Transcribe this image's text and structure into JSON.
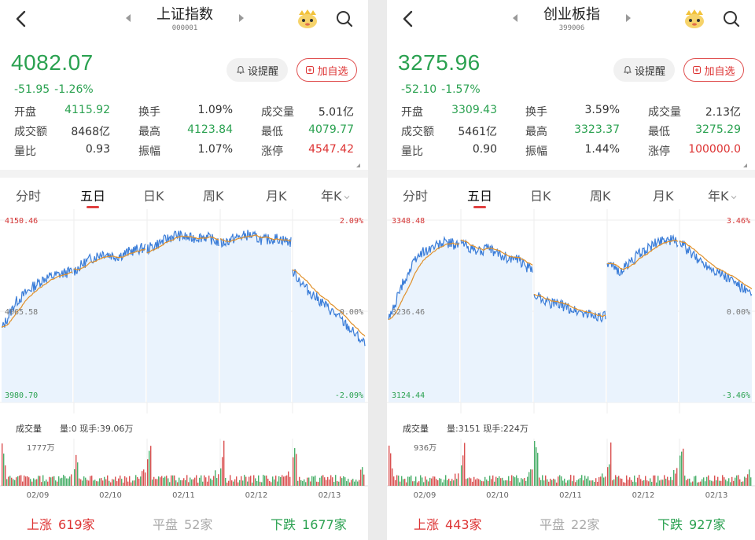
{
  "panels": [
    {
      "title": "上证指数",
      "code": "000001",
      "price": "4082.07",
      "change_abs": "-51.95",
      "change_pct": "-1.26%",
      "alert_label": "设提醒",
      "fav_label": "加自选",
      "stats": [
        [
          {
            "label": "开盘",
            "value": "4115.92",
            "color": "green"
          },
          {
            "label": "换手",
            "value": "1.09%",
            "color": "dark"
          },
          {
            "label": "成交量",
            "value": "5.01亿",
            "color": "dark"
          }
        ],
        [
          {
            "label": "成交额",
            "value": "8468亿",
            "color": "dark"
          },
          {
            "label": "最高",
            "value": "4123.84",
            "color": "green"
          },
          {
            "label": "最低",
            "value": "4079.77",
            "color": "green"
          }
        ],
        [
          {
            "label": "量比",
            "value": "0.93",
            "color": "dark"
          },
          {
            "label": "振幅",
            "value": "1.07%",
            "color": "dark"
          },
          {
            "label": "涨停",
            "value": "4547.42",
            "color": "red"
          }
        ]
      ],
      "tabs": [
        "分时",
        "五日",
        "日K",
        "周K",
        "月K",
        "年K"
      ],
      "active_tab": 1,
      "chart": {
        "y_top": "4150.46",
        "y_mid": "4065.58",
        "y_bot": "3980.70",
        "pct_top": "2.09%",
        "pct_mid": "0.00%",
        "pct_bot": "-2.09%",
        "dates": [
          "02/09",
          "02/10",
          "02/11",
          "02/12",
          "02/13"
        ]
      },
      "volume": {
        "title": "成交量",
        "info": "量:0 现手:39.06万",
        "max_label": "1777万"
      },
      "footer": {
        "up_label": "上涨",
        "up_num": "619家",
        "flat_label": "平盘",
        "flat_num": "52家",
        "down_label": "下跌",
        "down_num": "1677家"
      }
    },
    {
      "title": "创业板指",
      "code": "399006",
      "price": "3275.96",
      "change_abs": "-52.10",
      "change_pct": "-1.57%",
      "alert_label": "设提醒",
      "fav_label": "加自选",
      "stats": [
        [
          {
            "label": "开盘",
            "value": "3309.43",
            "color": "green"
          },
          {
            "label": "换手",
            "value": "3.59%",
            "color": "dark"
          },
          {
            "label": "成交量",
            "value": "2.13亿",
            "color": "dark"
          }
        ],
        [
          {
            "label": "成交额",
            "value": "5461亿",
            "color": "dark"
          },
          {
            "label": "最高",
            "value": "3323.37",
            "color": "green"
          },
          {
            "label": "最低",
            "value": "3275.29",
            "color": "green"
          }
        ],
        [
          {
            "label": "量比",
            "value": "0.90",
            "color": "dark"
          },
          {
            "label": "振幅",
            "value": "1.44%",
            "color": "dark"
          },
          {
            "label": "涨停",
            "value": "100000.0",
            "color": "red"
          }
        ]
      ],
      "tabs": [
        "分时",
        "五日",
        "日K",
        "周K",
        "月K",
        "年K"
      ],
      "active_tab": 1,
      "chart": {
        "y_top": "3348.48",
        "y_mid": "3236.46",
        "y_bot": "3124.44",
        "pct_top": "3.46%",
        "pct_mid": "0.00%",
        "pct_bot": "-3.46%",
        "dates": [
          "02/09",
          "02/10",
          "02/11",
          "02/12",
          "02/13"
        ]
      },
      "volume": {
        "title": "成交量",
        "info": "量:3151 现手:224万",
        "max_label": "936万"
      },
      "footer": {
        "up_label": "上涨",
        "up_num": "443家",
        "flat_label": "平盘",
        "flat_num": "22家",
        "down_label": "下跌",
        "down_num": "927家"
      }
    }
  ],
  "colors": {
    "up": "#d33333",
    "down": "#2aa150",
    "line": "#3b7dd8",
    "avg": "#e0902a",
    "fill": "#eaf3fd"
  },
  "icons": [
    "back-icon",
    "prev-arrow-icon",
    "next-arrow-icon",
    "mascot-icon",
    "search-icon",
    "bell-icon",
    "plus-box-icon",
    "caret-down-icon"
  ]
}
